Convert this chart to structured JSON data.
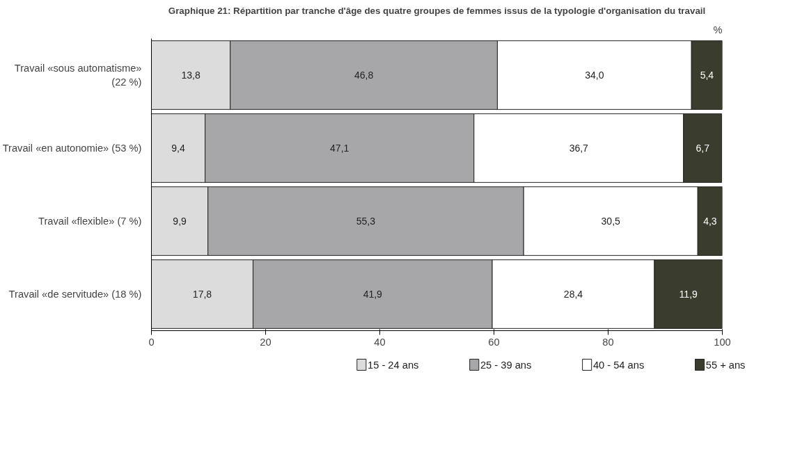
{
  "chart_data": {
    "type": "bar",
    "orientation": "horizontal",
    "stacked": true,
    "title": "Graphique 21: Répartition par tranche d'âge des quatre groupes de femmes issus de la typologie d'organisation du travail",
    "annotations": [
      "%"
    ],
    "categories": [
      "Travail «sous automatisme» (22 %)",
      "Travail «en autonomie» (53 %)",
      "Travail «flexible» (7 %)",
      "Travail «de servitude» (18 %)"
    ],
    "series": [
      {
        "name": "15 - 24 ans",
        "color": "#dcdcdd",
        "values": [
          13.8,
          9.4,
          9.9,
          17.8
        ],
        "value_labels": [
          "13,8",
          "9,4",
          "9,9",
          "17,8"
        ]
      },
      {
        "name": "25 - 39 ans",
        "color": "#a7a7aa",
        "values": [
          46.8,
          47.1,
          55.3,
          41.9
        ],
        "value_labels": [
          "46,8",
          "47,1",
          "55,3",
          "41,9"
        ]
      },
      {
        "name": "40 - 54 ans",
        "color": "#ffffff",
        "values": [
          34.0,
          36.7,
          30.5,
          28.4
        ],
        "value_labels": [
          "34,0",
          "36,7",
          "30,5",
          "28,4"
        ]
      },
      {
        "name": "55 + ans",
        "color": "#3a3d2d",
        "values": [
          5.4,
          6.7,
          4.3,
          11.9
        ],
        "value_labels": [
          "5,4",
          "6,7",
          "4,3",
          "11,9"
        ]
      }
    ],
    "xlim": [
      0,
      100
    ],
    "xticks": [
      0,
      20,
      40,
      60,
      80,
      100
    ],
    "grid": false,
    "legend": "bottom"
  }
}
